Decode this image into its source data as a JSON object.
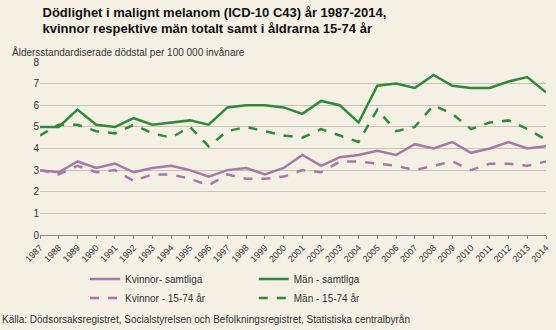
{
  "chart_data": {
    "type": "line",
    "title": "Dödlighet i malignt melanom (ICD-10 C43) år 1987-2014,\nkvinnor respektive män totalt samt i åldrarna 15-74 år",
    "subtitle": "Åldersstandardiserade dödstal per 100 000 invånare",
    "annotations": [
      "Källa: Dödsorsaksregistret, Socialstyrelsen och Befolkningsregistret, Statistiska centralbyrån"
    ],
    "categories": [
      "1987",
      "1988",
      "1989",
      "1990",
      "1991",
      "1992",
      "1993",
      "1994",
      "1995",
      "1996",
      "1997",
      "1998",
      "1999",
      "2000",
      "2001",
      "2002",
      "2003",
      "2004",
      "2005",
      "2006",
      "2007",
      "2008",
      "2009",
      "2010",
      "2011",
      "2012",
      "2013",
      "2014"
    ],
    "series": [
      {
        "name": "Kvinnor- samtliga",
        "color": "#a67aa8",
        "line_style": "solid",
        "values": [
          3.0,
          2.9,
          3.4,
          3.1,
          3.3,
          2.9,
          3.1,
          3.2,
          3.0,
          2.7,
          3.0,
          3.1,
          2.8,
          3.1,
          3.7,
          3.2,
          3.6,
          3.7,
          3.9,
          3.7,
          4.2,
          4.0,
          4.3,
          3.8,
          4.0,
          4.3,
          4.0,
          4.1
        ]
      },
      {
        "name": "Män - samtliga",
        "color": "#2e8b3a",
        "line_style": "solid",
        "values": [
          5.0,
          5.0,
          5.8,
          5.1,
          5.0,
          5.4,
          5.1,
          5.2,
          5.3,
          5.1,
          5.9,
          6.0,
          6.0,
          5.9,
          5.6,
          6.2,
          6.0,
          5.2,
          6.9,
          7.0,
          6.8,
          7.4,
          6.9,
          6.8,
          6.8,
          7.1,
          7.3,
          6.6
        ]
      },
      {
        "name": "Kvinnor - 15-74 år",
        "color": "#a67aa8",
        "line_style": "dash",
        "values": [
          3.0,
          2.8,
          3.2,
          2.9,
          3.0,
          2.5,
          2.8,
          2.8,
          2.6,
          2.3,
          2.8,
          2.6,
          2.6,
          2.7,
          3.0,
          2.9,
          3.4,
          3.4,
          3.3,
          3.2,
          3.0,
          3.2,
          3.4,
          3.0,
          3.3,
          3.3,
          3.2,
          3.4
        ]
      },
      {
        "name": "Män - 15-74 år",
        "color": "#2e8b3a",
        "line_style": "dash",
        "values": [
          4.6,
          5.1,
          5.1,
          4.8,
          4.7,
          5.1,
          4.7,
          4.5,
          5.0,
          4.1,
          4.8,
          5.0,
          4.8,
          4.6,
          4.5,
          4.9,
          4.6,
          4.3,
          5.8,
          4.8,
          5.0,
          6.0,
          5.6,
          4.9,
          5.2,
          5.3,
          4.9,
          4.4
        ]
      }
    ],
    "ylim": [
      0,
      8
    ],
    "yticks": [
      0,
      1,
      2,
      3,
      4,
      5,
      6,
      7,
      8
    ],
    "grid": true,
    "legend": "bottom"
  }
}
